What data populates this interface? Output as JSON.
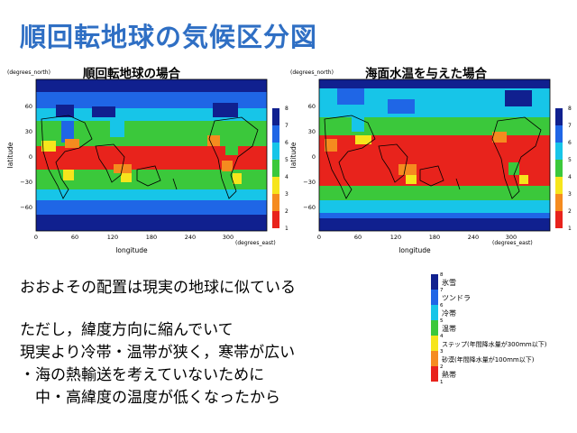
{
  "title": "順回転地球の気候区分図",
  "panels": [
    {
      "title": "順回転地球の場合",
      "y_unit": "(degrees_north)",
      "x_unit": "(degrees_east)",
      "xlabel": "longitude",
      "ylabel": "latitude",
      "x_ticks": [
        "0",
        "60",
        "120",
        "180",
        "240",
        "300"
      ],
      "y_ticks": [
        "60",
        "30",
        "0",
        "−30",
        "−60"
      ],
      "colorbar_ticks": [
        "1",
        "2",
        "3",
        "4",
        "5",
        "6",
        "7",
        "8"
      ]
    },
    {
      "title": "海面水温を与えた場合",
      "y_unit": "(degrees_north)",
      "x_unit": "(degrees_east)",
      "xlabel": "longitude",
      "ylabel": "latitude",
      "x_ticks": [
        "0",
        "60",
        "120",
        "180",
        "240",
        "300"
      ],
      "y_ticks": [
        "60",
        "30",
        "0",
        "−30",
        "−60"
      ],
      "colorbar_ticks": [
        "1",
        "2",
        "3",
        "4",
        "5",
        "6",
        "7",
        "8"
      ]
    }
  ],
  "climate_colors": [
    "#e8231c",
    "#f58b1f",
    "#f6e51c",
    "#3bc83b",
    "#17c5e8",
    "#1f66e6",
    "#10208f"
  ],
  "legend": {
    "numbers": [
      "8",
      "7",
      "6",
      "5",
      "4",
      "3",
      "2",
      "1"
    ],
    "zones": [
      {
        "label": "氷雪",
        "color": "#10208f"
      },
      {
        "label": "ツンドラ",
        "color": "#1f66e6"
      },
      {
        "label": "冷帯",
        "color": "#17c5e8"
      },
      {
        "label": "温帯",
        "color": "#3bc83b"
      },
      {
        "label": "ステップ(年間降水量が300mm以下)",
        "color": "#f6e51c"
      },
      {
        "label": "砂漠(年間降水量が100mm以下)",
        "color": "#f58b1f"
      },
      {
        "label": "熱帯",
        "color": "#e8231c"
      }
    ]
  },
  "text_lines": [
    "おおよその配置は現実の地球に似ている",
    "ただし，緯度方向に縮んでいて",
    "現実より冷帯・温帯が狭く，寒帯が広い",
    "・海の熱輸送を考えていないために",
    "　中・高緯度の温度が低くなったから"
  ]
}
